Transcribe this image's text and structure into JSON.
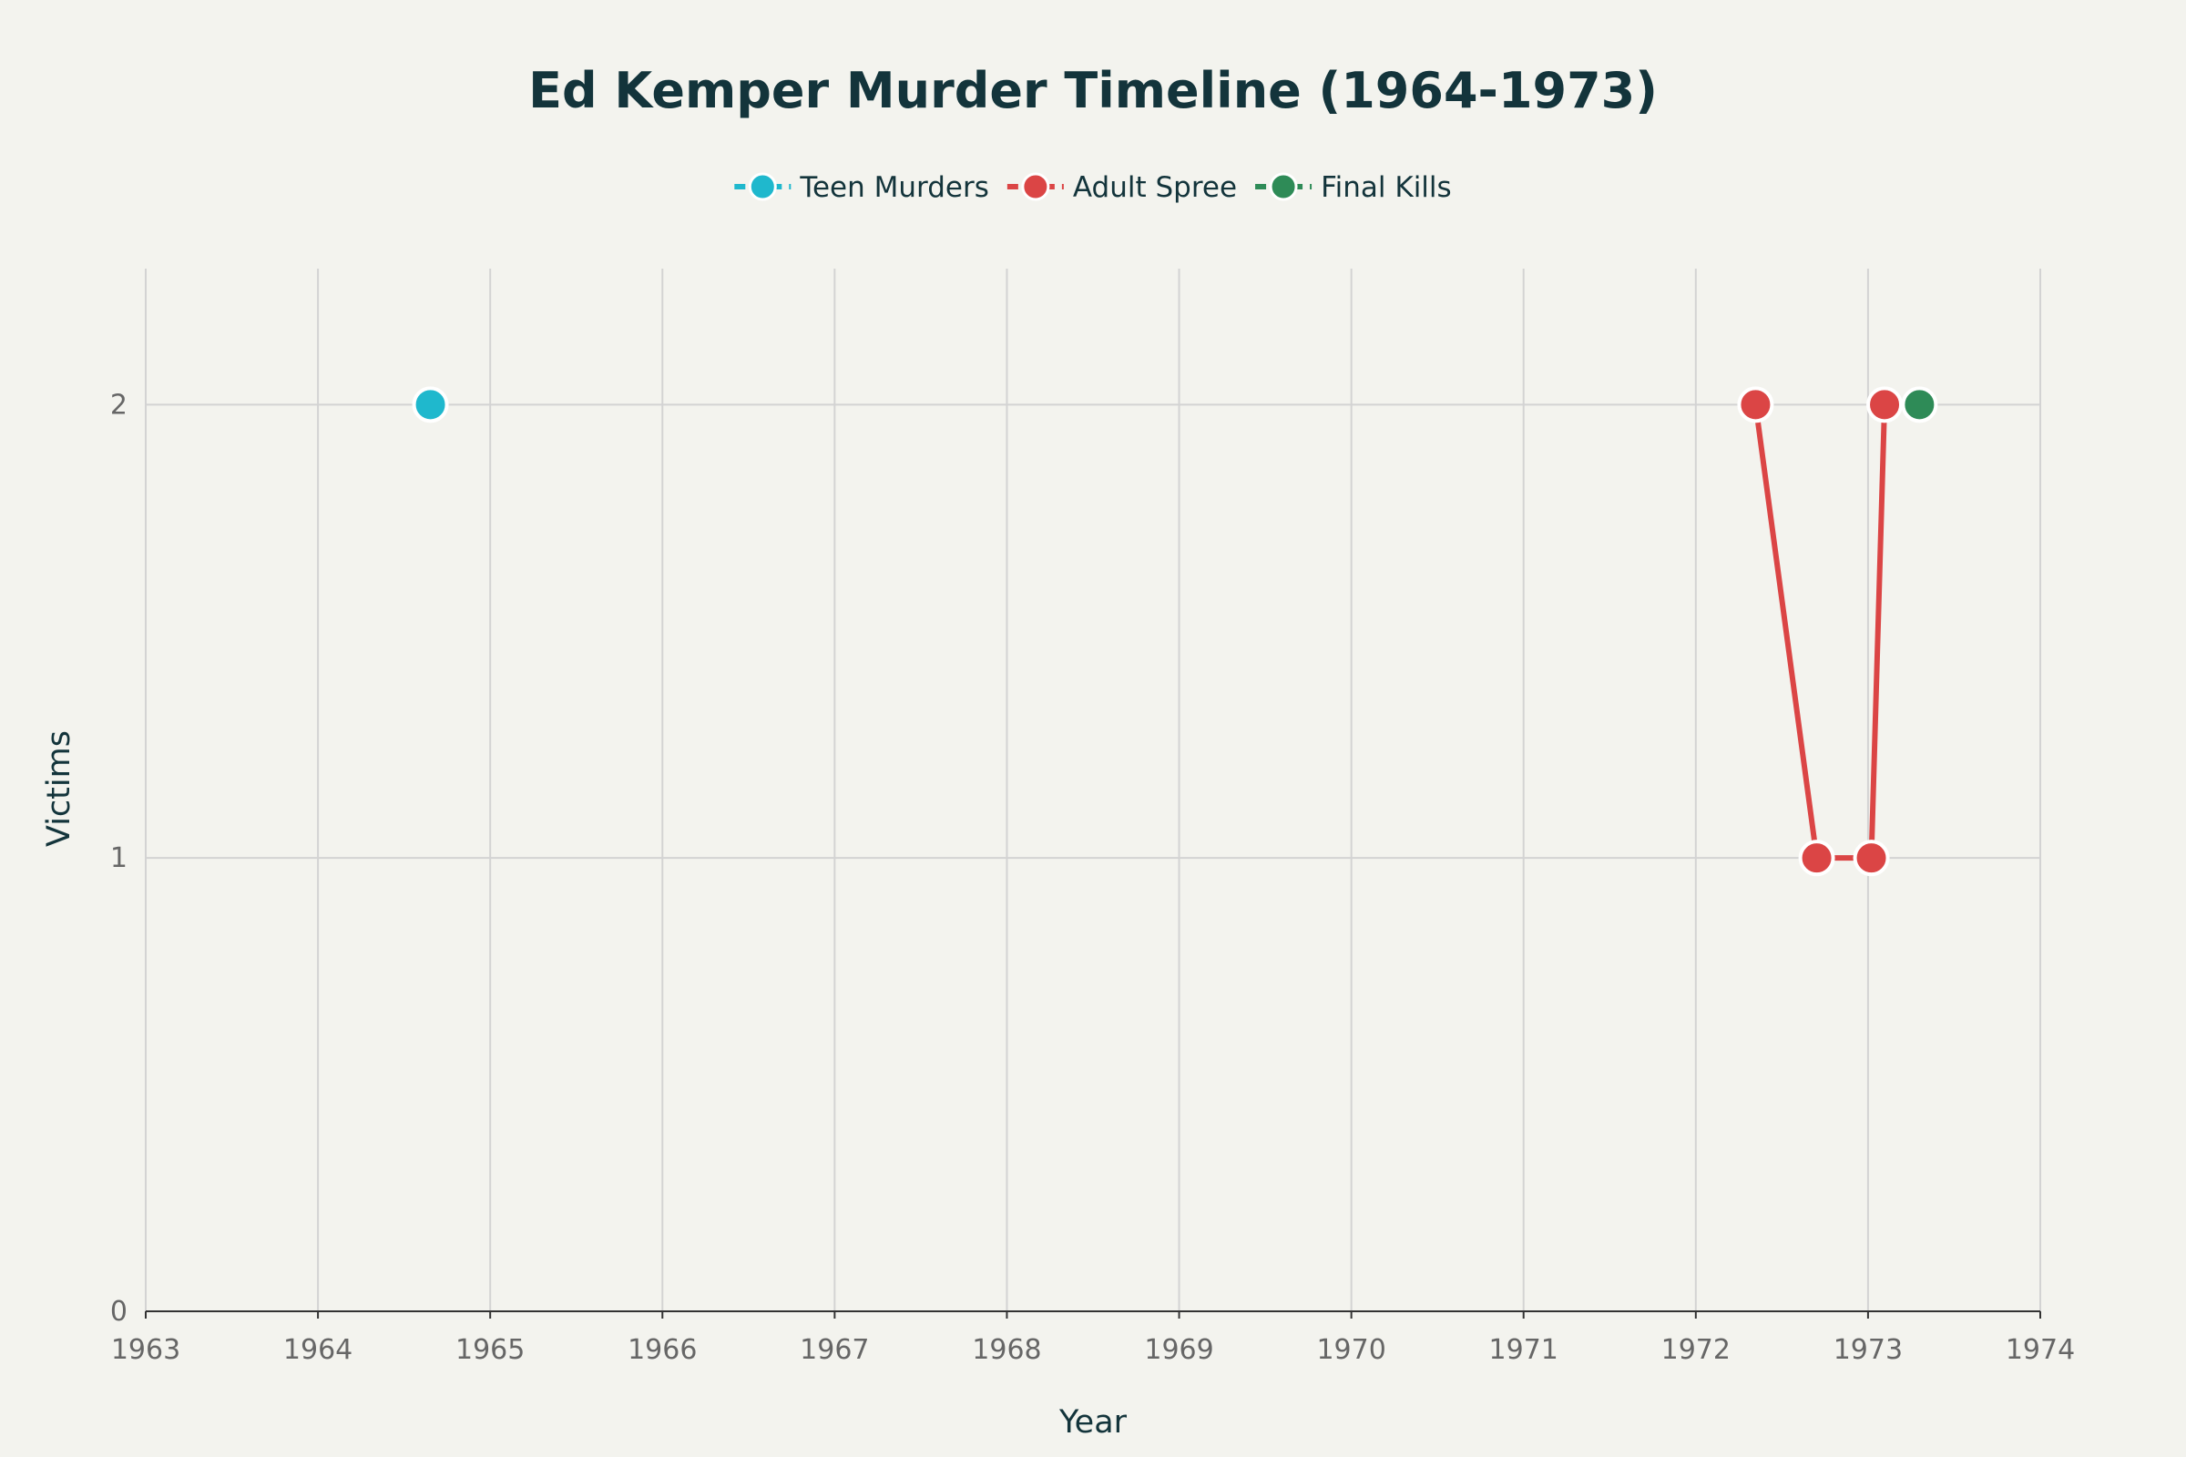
{
  "chart_data": {
    "type": "line",
    "title": "Ed Kemper Murder Timeline (1964-1973)",
    "xlabel": "Year",
    "ylabel": "Victims",
    "xlim": [
      "1963",
      "1974"
    ],
    "ylim": [
      0,
      2.3
    ],
    "x_ticks": [
      "1963",
      "1964",
      "1965",
      "1966",
      "1967",
      "1968",
      "1969",
      "1970",
      "1971",
      "1972",
      "1973",
      "1974"
    ],
    "y_ticks": [
      "0",
      "1",
      "2"
    ],
    "grid": true,
    "legend_position": "top-center",
    "series": [
      {
        "name": "Teen Murders",
        "color": "#1fb8cd",
        "points": [
          {
            "x": "1964-08-27",
            "y": 2
          }
        ]
      },
      {
        "name": "Adult Spree",
        "color": "#db4545",
        "points": [
          {
            "x": "1972-05-07",
            "y": 2
          },
          {
            "x": "1972-09-14",
            "y": 1
          },
          {
            "x": "1973-01-08",
            "y": 1
          },
          {
            "x": "1973-02-05",
            "y": 2
          }
        ]
      },
      {
        "name": "Final Kills",
        "color": "#2e8b57",
        "points": [
          {
            "x": "1973-04-20",
            "y": 2
          }
        ]
      }
    ]
  }
}
